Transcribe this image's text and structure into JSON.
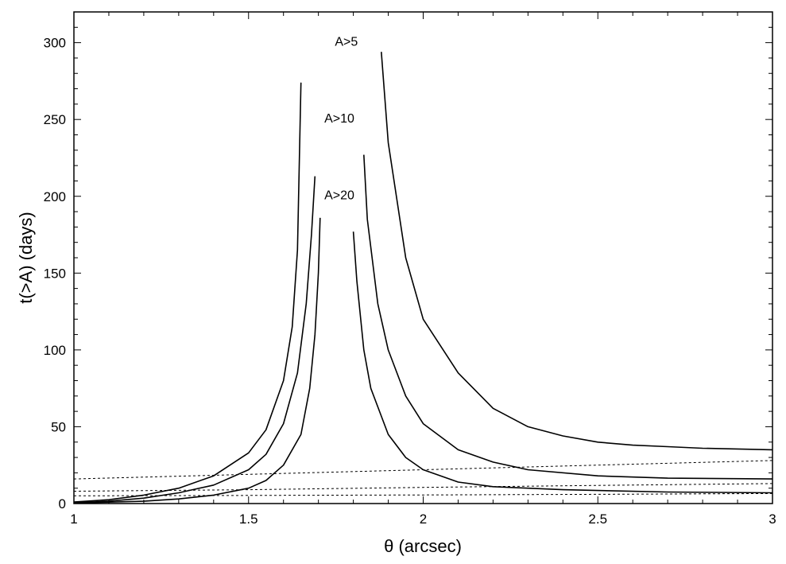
{
  "chart_data": {
    "type": "line",
    "title": "",
    "xlabel": "θ (arcsec)",
    "ylabel": "t(>A) (days)",
    "xlim": [
      1,
      3
    ],
    "ylim": [
      0,
      320
    ],
    "xticks": [
      1,
      1.5,
      2,
      2.5,
      3
    ],
    "xtick_labels": [
      "1",
      "1.5",
      "2",
      "2.5",
      "3"
    ],
    "yticks": [
      0,
      50,
      100,
      150,
      200,
      250,
      300
    ],
    "ytick_labels": [
      "0",
      "50",
      "100",
      "150",
      "200",
      "250",
      "300"
    ],
    "grid": false,
    "annotations": [
      {
        "text": "A>5",
        "x": 1.78,
        "y": 298
      },
      {
        "text": "A>10",
        "x": 1.76,
        "y": 248
      },
      {
        "text": "A>20",
        "x": 1.76,
        "y": 198
      }
    ],
    "series": [
      {
        "style": "solid",
        "points": [
          [
            1.0,
            1
          ],
          [
            1.1,
            2.5
          ],
          [
            1.2,
            5.5
          ],
          [
            1.3,
            10
          ],
          [
            1.4,
            18
          ],
          [
            1.5,
            33
          ],
          [
            1.55,
            48
          ],
          [
            1.6,
            80
          ],
          [
            1.625,
            115
          ],
          [
            1.64,
            165
          ],
          [
            1.65,
            274
          ]
        ]
      },
      {
        "style": "solid",
        "points": [
          [
            1.88,
            294
          ],
          [
            1.9,
            235
          ],
          [
            1.95,
            160
          ],
          [
            2.0,
            120
          ],
          [
            2.1,
            85
          ],
          [
            2.2,
            62
          ],
          [
            2.3,
            50
          ],
          [
            2.4,
            44
          ],
          [
            2.5,
            40
          ],
          [
            2.6,
            38
          ],
          [
            2.7,
            37
          ],
          [
            2.8,
            36
          ],
          [
            2.9,
            35.5
          ],
          [
            3.0,
            35
          ]
        ]
      },
      {
        "style": "solid",
        "points": [
          [
            1.0,
            0.5
          ],
          [
            1.1,
            1.5
          ],
          [
            1.2,
            3.5
          ],
          [
            1.3,
            7
          ],
          [
            1.4,
            12
          ],
          [
            1.5,
            22
          ],
          [
            1.55,
            32
          ],
          [
            1.6,
            52
          ],
          [
            1.64,
            85
          ],
          [
            1.665,
            130
          ],
          [
            1.68,
            175
          ],
          [
            1.69,
            213
          ]
        ]
      },
      {
        "style": "solid",
        "points": [
          [
            1.83,
            227
          ],
          [
            1.84,
            185
          ],
          [
            1.87,
            130
          ],
          [
            1.9,
            100
          ],
          [
            1.95,
            70
          ],
          [
            2.0,
            52
          ],
          [
            2.1,
            35
          ],
          [
            2.2,
            27
          ],
          [
            2.3,
            22
          ],
          [
            2.5,
            18
          ],
          [
            2.7,
            16.5
          ],
          [
            3.0,
            16
          ]
        ]
      },
      {
        "style": "solid",
        "points": [
          [
            1.0,
            0.3
          ],
          [
            1.2,
            1.5
          ],
          [
            1.3,
            3
          ],
          [
            1.4,
            5.5
          ],
          [
            1.5,
            10
          ],
          [
            1.55,
            15
          ],
          [
            1.6,
            25
          ],
          [
            1.65,
            45
          ],
          [
            1.675,
            75
          ],
          [
            1.69,
            110
          ],
          [
            1.7,
            150
          ],
          [
            1.705,
            186
          ]
        ]
      },
      {
        "style": "solid",
        "points": [
          [
            1.8,
            177
          ],
          [
            1.81,
            145
          ],
          [
            1.83,
            100
          ],
          [
            1.85,
            75
          ],
          [
            1.9,
            45
          ],
          [
            1.95,
            30
          ],
          [
            2.0,
            22
          ],
          [
            2.1,
            14
          ],
          [
            2.2,
            11
          ],
          [
            2.4,
            9
          ],
          [
            2.7,
            7.5
          ],
          [
            3.0,
            7
          ]
        ]
      },
      {
        "style": "dashed",
        "points": [
          [
            1.0,
            16
          ],
          [
            1.5,
            19
          ],
          [
            2.0,
            22
          ],
          [
            2.5,
            25
          ],
          [
            3.0,
            28
          ]
        ]
      },
      {
        "style": "dashed",
        "points": [
          [
            1.0,
            8
          ],
          [
            1.5,
            9
          ],
          [
            2.0,
            10.5
          ],
          [
            2.5,
            11.8
          ],
          [
            3.0,
            13
          ]
        ]
      },
      {
        "style": "dashed",
        "points": [
          [
            1.0,
            5
          ],
          [
            1.5,
            5.3
          ],
          [
            2.0,
            5.6
          ],
          [
            2.5,
            6
          ],
          [
            3.0,
            6.5
          ]
        ]
      }
    ]
  }
}
